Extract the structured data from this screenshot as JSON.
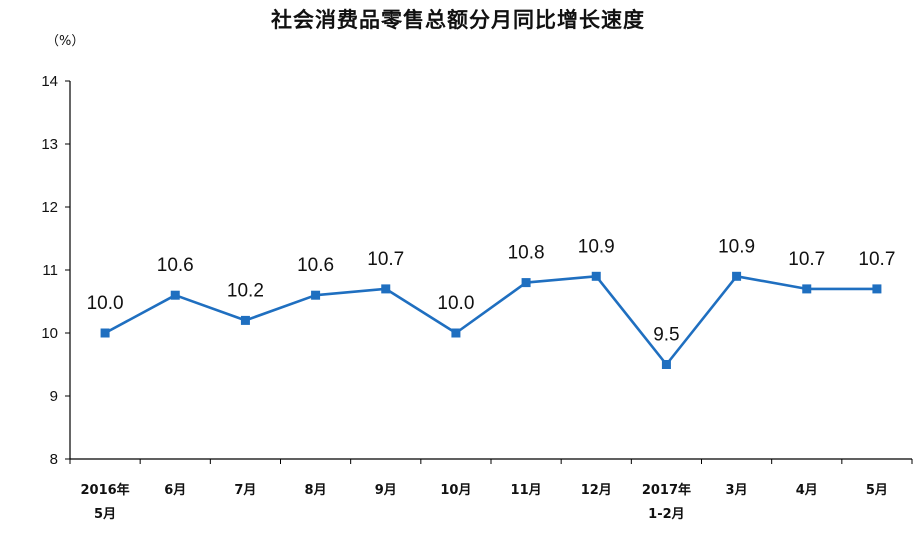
{
  "chart_data": {
    "type": "line",
    "title": "社会消费品零售总额分月同比增长速度",
    "ylabel": "（%）",
    "xlabel": "",
    "ylim": [
      8,
      14
    ],
    "yticks": [
      "14",
      "13",
      "12",
      "11",
      "10",
      "9",
      "8"
    ],
    "categories": [
      [
        "2016年",
        "5月"
      ],
      [
        "6月"
      ],
      [
        "7月"
      ],
      [
        "8月"
      ],
      [
        "9月"
      ],
      [
        "10月"
      ],
      [
        "11月"
      ],
      [
        "12月"
      ],
      [
        "2017年",
        "1-2月"
      ],
      [
        "3月"
      ],
      [
        "4月"
      ],
      [
        "5月"
      ]
    ],
    "values": [
      10.0,
      10.6,
      10.2,
      10.6,
      10.7,
      10.0,
      10.8,
      10.9,
      9.5,
      10.9,
      10.7,
      10.7
    ],
    "value_labels": [
      "10.0",
      "10.6",
      "10.2",
      "10.6",
      "10.7",
      "10.0",
      "10.8",
      "10.9",
      "9.5",
      "10.9",
      "10.7",
      "10.7"
    ],
    "grid": false,
    "legend": "none",
    "colors": {
      "line": "#1f6fc0",
      "marker": "#1f6fc0",
      "axis": "#000000"
    }
  }
}
